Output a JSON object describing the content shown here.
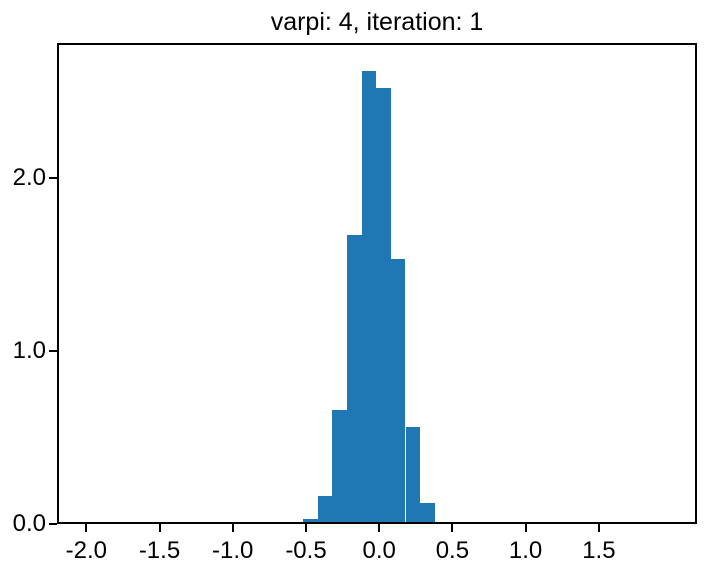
{
  "chart_data": {
    "type": "bar",
    "subtype": "histogram",
    "title": "varpi: 4, iteration: 1",
    "xlabel": "",
    "ylabel": "",
    "bar_color": "#1f77b4",
    "axis_color": "#000000",
    "background_color": "#ffffff",
    "bin_width": 0.1,
    "bin_left_edges": [
      -0.52,
      -0.42,
      -0.32,
      -0.22,
      -0.12,
      -0.02,
      0.08,
      0.18,
      0.28,
      0.38
    ],
    "values": [
      0.03,
      0.16,
      0.66,
      1.67,
      2.62,
      2.52,
      1.53,
      0.56,
      0.12,
      0.01
    ],
    "xlim": [
      -2.2,
      2.17
    ],
    "ylim": [
      0,
      2.78
    ],
    "xticks": [
      -2.0,
      -1.5,
      -1.0,
      -0.5,
      0.0,
      0.5,
      1.0,
      1.5
    ],
    "xtick_labels": [
      "-2.0",
      "-1.5",
      "-1.0",
      "-0.5",
      "0.0",
      "0.5",
      "1.0",
      "1.5"
    ],
    "yticks": [
      0.0,
      1.0,
      2.0
    ],
    "ytick_labels": [
      "0.0",
      "1.0",
      "2.0"
    ],
    "grid": false,
    "legend_position": "none"
  }
}
